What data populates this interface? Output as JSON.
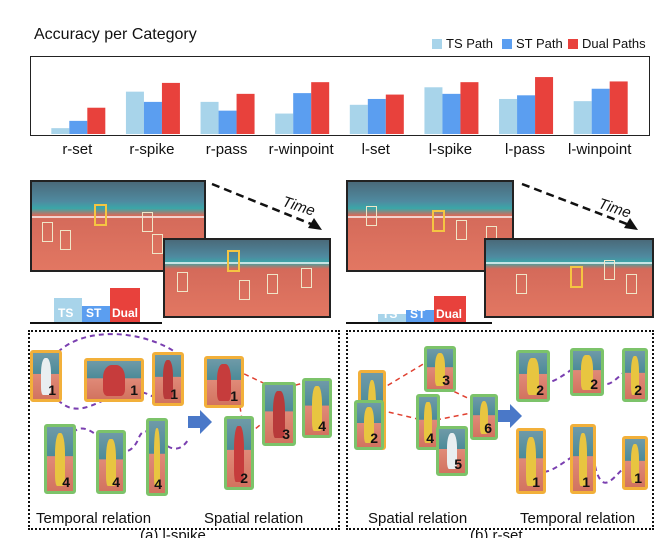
{
  "chart_data": {
    "type": "bar",
    "title": "Accuracy per Category",
    "categories": [
      "r-set",
      "r-spike",
      "r-pass",
      "r-winpoint",
      "l-set",
      "l-spike",
      "l-pass",
      "l-winpoint"
    ],
    "series": [
      {
        "name": "TS Path",
        "color": "#a8d4ea",
        "values": [
          0.08,
          0.58,
          0.44,
          0.28,
          0.4,
          0.64,
          0.48,
          0.45
        ]
      },
      {
        "name": "ST Path",
        "color": "#5b9ef0",
        "values": [
          0.18,
          0.44,
          0.32,
          0.56,
          0.48,
          0.55,
          0.53,
          0.62
        ]
      },
      {
        "name": "Dual Paths",
        "color": "#e8413c",
        "values": [
          0.36,
          0.7,
          0.55,
          0.71,
          0.54,
          0.71,
          0.78,
          0.72
        ]
      }
    ],
    "ylim": [
      0,
      1
    ],
    "legend_position": "top-right",
    "grid": false
  },
  "legend": {
    "ts": "TS Path",
    "st": "ST Path",
    "dual": "Dual Paths"
  },
  "scene_left": {
    "time_label": "Time",
    "mini_bars": {
      "ts": "TS",
      "st": "ST",
      "dual": "Dual",
      "ts_h": 0.55,
      "st_h": 0.35,
      "dual_h": 0.85
    }
  },
  "scene_right": {
    "time_label": "Time",
    "mini_bars": {
      "ts": "TS",
      "st": "ST",
      "dual": "Dual",
      "ts_h": 0.2,
      "st_h": 0.3,
      "dual_h": 0.6
    }
  },
  "panel_left": {
    "temporal_caption": "Temporal relation",
    "spatial_caption": "Spatial relation",
    "sub_caption": "(a) l-spike"
  },
  "panel_right": {
    "spatial_caption": "Spatial relation",
    "temporal_caption": "Temporal relation",
    "sub_caption": "(b) r-set"
  },
  "crop_numbers": {
    "l1": "1",
    "l2": "1",
    "l3": "1",
    "l4": "4",
    "l5": "4",
    "l6": "4",
    "l7": "1",
    "l8": "2",
    "l9": "3",
    "l10": "4",
    "r1": "1",
    "r2": "2",
    "r3": "3",
    "r4": "4",
    "r5": "5",
    "r6": "6",
    "r7": "2",
    "r8": "2",
    "r9": "2",
    "r10": "1",
    "r11": "1",
    "r12": "1"
  }
}
